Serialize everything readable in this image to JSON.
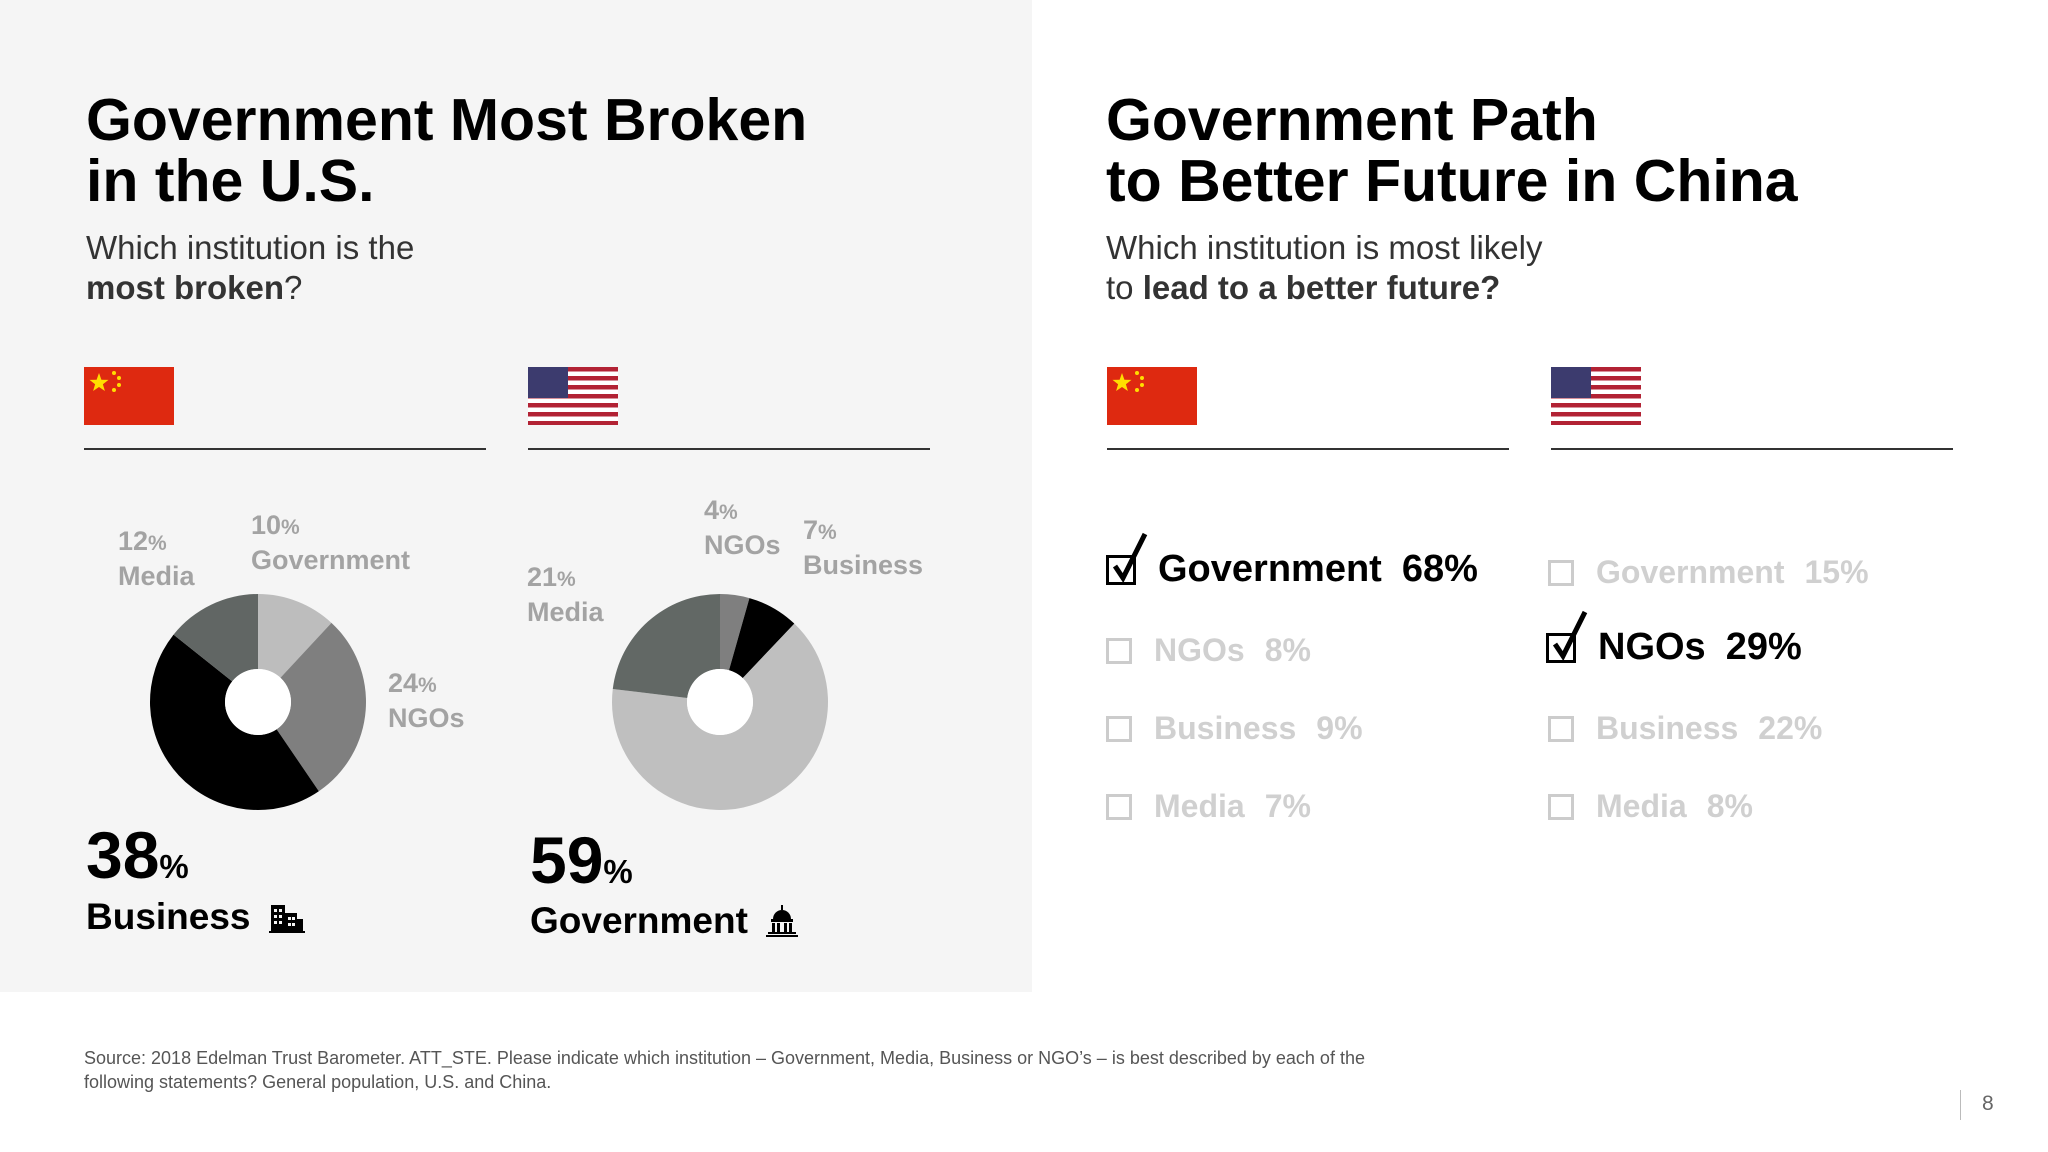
{
  "left": {
    "title_line1": "Government Most Broken",
    "title_line2": "in the U.S.",
    "subtitle_line1": "Which institution is the",
    "subtitle_bold": "most broken",
    "subtitle_end": "?"
  },
  "right": {
    "title_line1": "Government Path",
    "title_line2": "to Better Future in China",
    "subtitle_line1": "Which institution is most likely",
    "subtitle_pre": "to ",
    "subtitle_bold": "lead to a better future?"
  },
  "percent_sign": "%",
  "chart_data": [
    {
      "type": "pie",
      "country": "China",
      "question": "most broken",
      "slices": [
        {
          "label": "Government",
          "value": 10,
          "color": "#bdbdbd"
        },
        {
          "label": "NGOs",
          "value": 24,
          "color": "#7f7f7f"
        },
        {
          "label": "Business",
          "value": 38,
          "color": "#000000"
        },
        {
          "label": "Media",
          "value": 12,
          "color": "#616664"
        }
      ],
      "highlight": {
        "value": "38",
        "label": "Business",
        "icon": "office-building-icon"
      }
    },
    {
      "type": "pie",
      "country": "U.S.",
      "question": "most broken",
      "slices": [
        {
          "label": "NGOs",
          "value": 4,
          "color": "#7f7f7f"
        },
        {
          "label": "Business",
          "value": 7,
          "color": "#000000"
        },
        {
          "label": "Government",
          "value": 59,
          "color": "#bfbfbf"
        },
        {
          "label": "Media",
          "value": 21,
          "color": "#626865"
        }
      ],
      "highlight": {
        "value": "59",
        "label": "Government",
        "icon": "capitol-building-icon"
      }
    },
    {
      "type": "table",
      "country": "China",
      "question": "lead to a better future",
      "items": [
        {
          "label": "Government",
          "value": "68%",
          "selected": true
        },
        {
          "label": "NGOs",
          "value": "8%",
          "selected": false
        },
        {
          "label": "Business",
          "value": "9%",
          "selected": false
        },
        {
          "label": "Media",
          "value": "7%",
          "selected": false
        }
      ]
    },
    {
      "type": "table",
      "country": "U.S.",
      "question": "lead to a better future",
      "items": [
        {
          "label": "Government",
          "value": "15%",
          "selected": false
        },
        {
          "label": "NGOs",
          "value": "29%",
          "selected": true
        },
        {
          "label": "Business",
          "value": "22%",
          "selected": false
        },
        {
          "label": "Media",
          "value": "8%",
          "selected": false
        }
      ]
    }
  ],
  "colors": {
    "panel_bg": "#f5f5f5",
    "china_red": "#de2910",
    "china_star": "#ffde00",
    "us_red": "#b22234",
    "us_blue": "#3c3b6e",
    "faded": "#d0d0d0",
    "label_gray": "#a3a3a3"
  },
  "footnote_line1": "Source: 2018 Edelman Trust Barometer. ATT_STE. Please indicate which institution – Government, Media, Business or NGO’s – is best described by each of the",
  "footnote_line2": "following statements? General population, U.S. and China.",
  "page_number": "8"
}
